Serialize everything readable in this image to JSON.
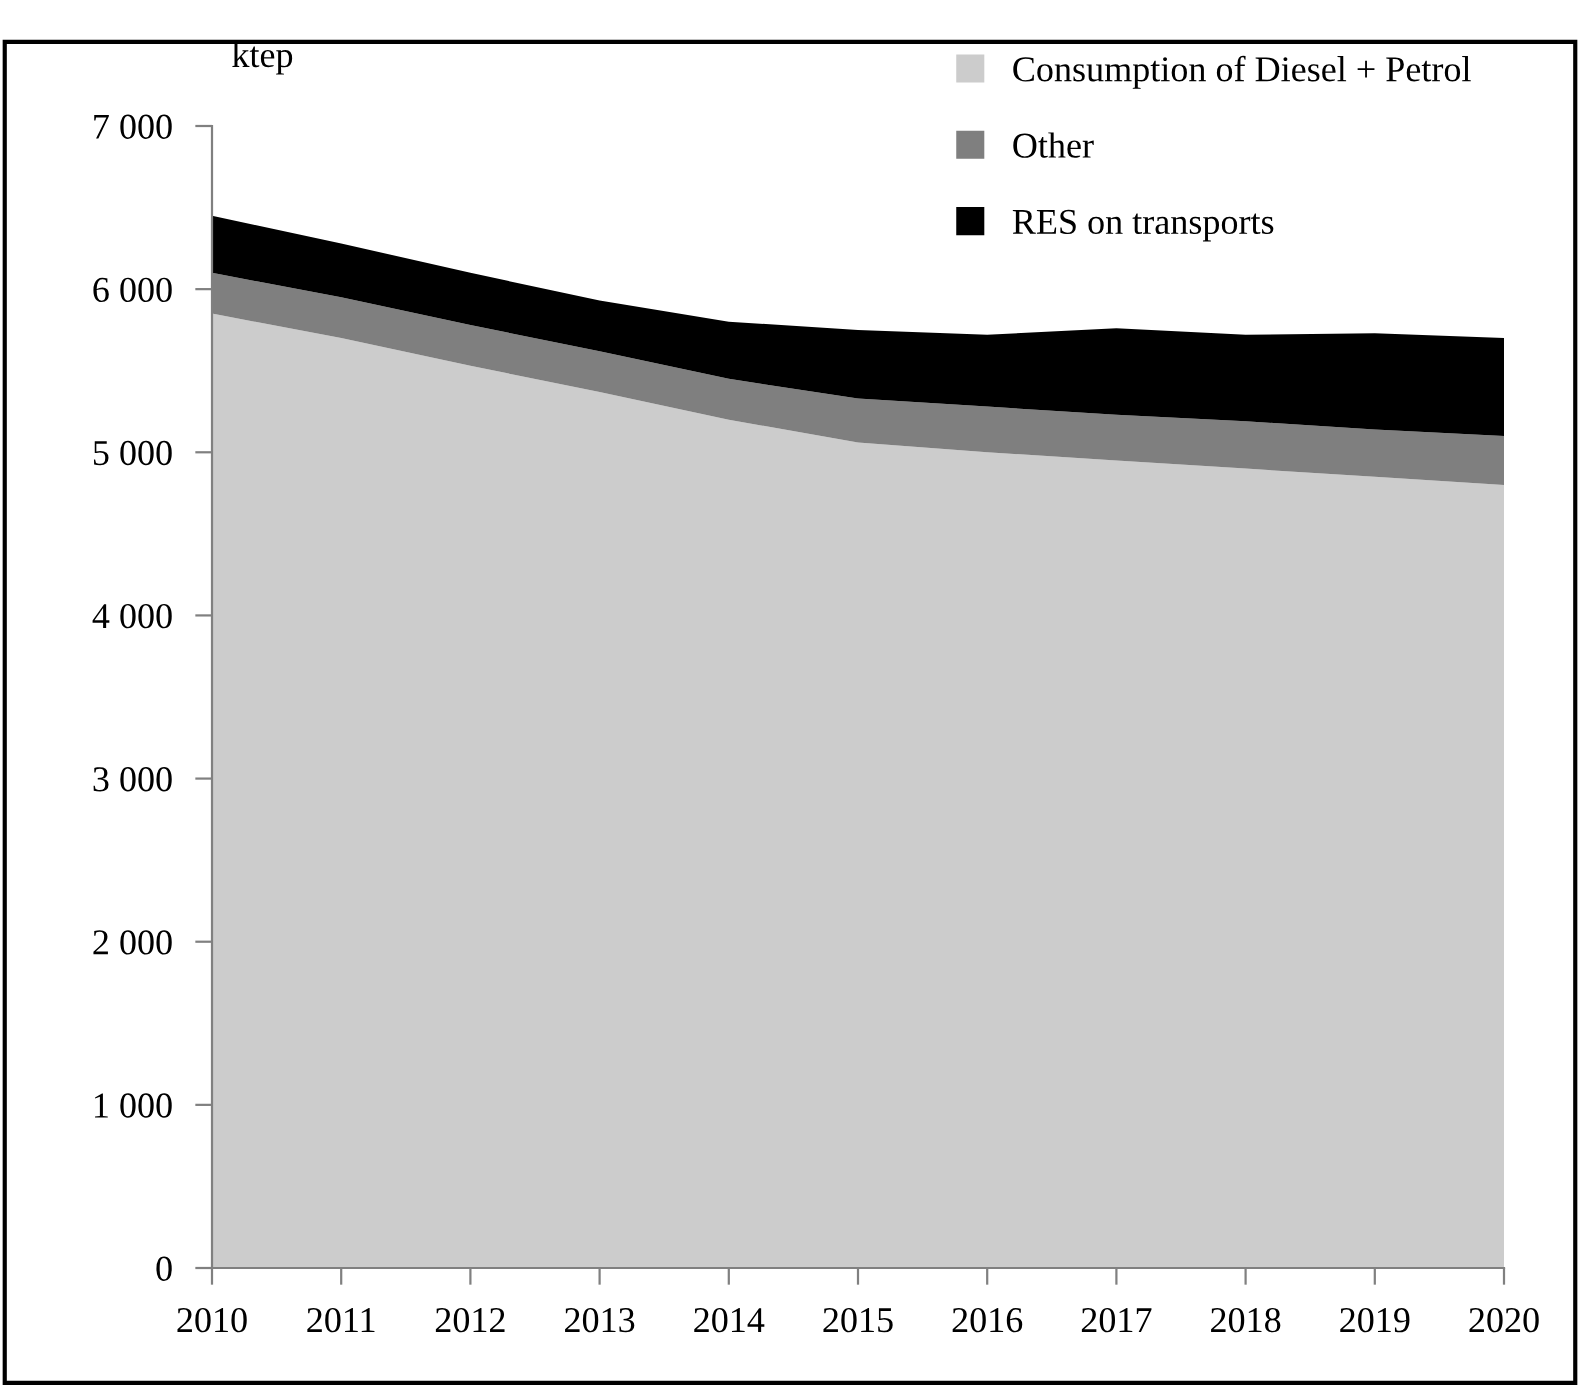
{
  "chart_data": {
    "type": "area",
    "stacked": true,
    "ylabel": "ktep",
    "x": [
      2010,
      2011,
      2012,
      2013,
      2014,
      2015,
      2016,
      2017,
      2018,
      2019,
      2020
    ],
    "xlim": [
      2010,
      2020
    ],
    "xticks": [
      2010,
      2011,
      2012,
      2013,
      2014,
      2015,
      2016,
      2017,
      2018,
      2019,
      2020
    ],
    "ylim": [
      0,
      7000
    ],
    "yticks": [
      0,
      {
        "value": 1000,
        "label": "1 000"
      },
      {
        "value": 2000,
        "label": "2 000"
      },
      {
        "value": 3000,
        "label": "3 000"
      },
      {
        "value": 4000,
        "label": "4 000"
      },
      {
        "value": 5000,
        "label": "5 000"
      },
      {
        "value": 6000,
        "label": "6 000"
      },
      {
        "value": 7000,
        "label": "7 000"
      }
    ],
    "grid": false,
    "legend": "top right",
    "series": [
      {
        "name": "Consumption of Diesel + Petrol",
        "color": "#cccccc",
        "values": [
          5850,
          5700,
          5530,
          5370,
          5200,
          5060,
          5000,
          4950,
          4900,
          4850,
          4800
        ]
      },
      {
        "name": "Other",
        "color": "#7f7f7f",
        "values": [
          250,
          250,
          250,
          250,
          250,
          270,
          280,
          280,
          290,
          290,
          300
        ]
      },
      {
        "name": "RES on transports",
        "color": "#000000",
        "values": [
          350,
          330,
          320,
          310,
          350,
          420,
          440,
          530,
          530,
          590,
          600
        ]
      }
    ]
  }
}
